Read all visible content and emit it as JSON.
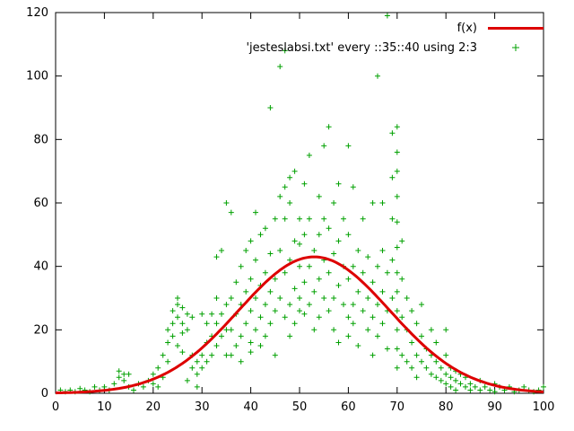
{
  "chart_data": {
    "type": "scatter",
    "title": "",
    "xlabel": "",
    "ylabel": "",
    "xlim": [
      0,
      100
    ],
    "ylim": [
      0,
      120
    ],
    "xticks": [
      0,
      10,
      20,
      30,
      40,
      50,
      60,
      70,
      80,
      90,
      100
    ],
    "yticks": [
      0,
      20,
      40,
      60,
      80,
      100,
      120
    ],
    "grid": false,
    "legend_position": "top-right-inside",
    "colors": {
      "line": "#dd0000",
      "points": "#00a000",
      "axis": "#000000",
      "background": "#ffffff"
    },
    "series": [
      {
        "label": "f(x)",
        "type": "line",
        "color": "#dd0000",
        "function": "gaussian",
        "amplitude": 43,
        "mean": 53,
        "sigma": 15.5
      },
      {
        "label": "'jesteslabsi.txt' every ::35::40 using 2:3",
        "type": "points",
        "marker": "plus",
        "color": "#00a000",
        "points": [
          [
            1,
            1
          ],
          [
            2,
            0.5
          ],
          [
            3,
            1
          ],
          [
            4,
            0.5
          ],
          [
            5,
            1.5
          ],
          [
            6,
            1
          ],
          [
            7,
            0.5
          ],
          [
            8,
            2
          ],
          [
            9,
            1
          ],
          [
            10,
            2
          ],
          [
            11,
            1
          ],
          [
            12,
            3
          ],
          [
            13,
            5
          ],
          [
            13,
            7
          ],
          [
            14,
            6
          ],
          [
            14,
            4
          ],
          [
            15,
            6
          ],
          [
            15,
            2
          ],
          [
            16,
            1
          ],
          [
            17,
            3
          ],
          [
            18,
            2
          ],
          [
            19,
            4
          ],
          [
            20,
            3
          ],
          [
            20,
            6
          ],
          [
            21,
            2
          ],
          [
            21,
            8
          ],
          [
            22,
            5
          ],
          [
            22,
            12
          ],
          [
            23,
            10
          ],
          [
            23,
            16
          ],
          [
            23,
            20
          ],
          [
            24,
            18
          ],
          [
            24,
            22
          ],
          [
            24,
            26
          ],
          [
            25,
            24
          ],
          [
            25,
            28
          ],
          [
            25,
            30
          ],
          [
            25,
            15
          ],
          [
            26,
            13
          ],
          [
            26,
            19
          ],
          [
            26,
            22
          ],
          [
            26,
            27
          ],
          [
            27,
            20
          ],
          [
            27,
            25
          ],
          [
            27,
            4
          ],
          [
            28,
            8
          ],
          [
            28,
            12
          ],
          [
            28,
            24
          ],
          [
            29,
            6
          ],
          [
            29,
            10
          ],
          [
            29,
            2
          ],
          [
            30,
            8
          ],
          [
            30,
            12
          ],
          [
            30,
            25
          ],
          [
            31,
            10
          ],
          [
            31,
            16
          ],
          [
            31,
            22
          ],
          [
            32,
            12
          ],
          [
            32,
            18
          ],
          [
            32,
            25
          ],
          [
            33,
            15
          ],
          [
            33,
            22
          ],
          [
            33,
            30
          ],
          [
            33,
            43
          ],
          [
            34,
            18
          ],
          [
            34,
            25
          ],
          [
            34,
            45
          ],
          [
            35,
            12
          ],
          [
            35,
            20
          ],
          [
            35,
            28
          ],
          [
            35,
            60
          ],
          [
            36,
            57
          ],
          [
            36,
            12
          ],
          [
            36,
            20
          ],
          [
            36,
            30
          ],
          [
            37,
            15
          ],
          [
            37,
            25
          ],
          [
            37,
            35
          ],
          [
            38,
            18
          ],
          [
            38,
            28
          ],
          [
            38,
            40
          ],
          [
            38,
            10
          ],
          [
            39,
            22
          ],
          [
            39,
            32
          ],
          [
            39,
            45
          ],
          [
            40,
            16
          ],
          [
            40,
            26
          ],
          [
            40,
            36
          ],
          [
            40,
            48
          ],
          [
            40,
            13
          ],
          [
            41,
            20
          ],
          [
            41,
            30
          ],
          [
            41,
            42
          ],
          [
            41,
            57
          ],
          [
            42,
            24
          ],
          [
            42,
            34
          ],
          [
            42,
            50
          ],
          [
            42,
            15
          ],
          [
            43,
            18
          ],
          [
            43,
            28
          ],
          [
            43,
            38
          ],
          [
            43,
            52
          ],
          [
            44,
            22
          ],
          [
            44,
            32
          ],
          [
            44,
            44
          ],
          [
            44,
            90
          ],
          [
            45,
            26
          ],
          [
            45,
            36
          ],
          [
            45,
            55
          ],
          [
            45,
            12
          ],
          [
            46,
            30
          ],
          [
            46,
            45
          ],
          [
            46,
            62
          ],
          [
            46,
            103
          ],
          [
            47,
            24
          ],
          [
            47,
            38
          ],
          [
            47,
            55
          ],
          [
            47,
            65
          ],
          [
            47,
            108
          ],
          [
            48,
            28
          ],
          [
            48,
            42
          ],
          [
            48,
            60
          ],
          [
            48,
            68
          ],
          [
            48,
            18
          ],
          [
            49,
            33
          ],
          [
            49,
            48
          ],
          [
            49,
            70
          ],
          [
            49,
            22
          ],
          [
            50,
            30
          ],
          [
            50,
            40
          ],
          [
            50,
            47
          ],
          [
            50,
            55
          ],
          [
            50,
            26
          ],
          [
            51,
            25
          ],
          [
            51,
            35
          ],
          [
            51,
            50
          ],
          [
            51,
            66
          ],
          [
            52,
            28
          ],
          [
            52,
            40
          ],
          [
            52,
            55
          ],
          [
            52,
            75
          ],
          [
            53,
            32
          ],
          [
            53,
            45
          ],
          [
            53,
            20
          ],
          [
            54,
            36
          ],
          [
            54,
            50
          ],
          [
            54,
            62
          ],
          [
            54,
            24
          ],
          [
            55,
            30
          ],
          [
            55,
            42
          ],
          [
            55,
            55
          ],
          [
            55,
            78
          ],
          [
            56,
            26
          ],
          [
            56,
            38
          ],
          [
            56,
            52
          ],
          [
            56,
            84
          ],
          [
            57,
            30
          ],
          [
            57,
            44
          ],
          [
            57,
            60
          ],
          [
            57,
            20
          ],
          [
            58,
            34
          ],
          [
            58,
            48
          ],
          [
            58,
            66
          ],
          [
            58,
            16
          ],
          [
            59,
            28
          ],
          [
            59,
            40
          ],
          [
            59,
            55
          ],
          [
            60,
            24
          ],
          [
            60,
            36
          ],
          [
            60,
            50
          ],
          [
            60,
            78
          ],
          [
            60,
            18
          ],
          [
            61,
            28
          ],
          [
            61,
            40
          ],
          [
            61,
            22
          ],
          [
            61,
            65
          ],
          [
            62,
            32
          ],
          [
            62,
            45
          ],
          [
            62,
            15
          ],
          [
            63,
            26
          ],
          [
            63,
            38
          ],
          [
            63,
            55
          ],
          [
            64,
            20
          ],
          [
            64,
            30
          ],
          [
            64,
            43
          ],
          [
            65,
            24
          ],
          [
            65,
            35
          ],
          [
            65,
            12
          ],
          [
            65,
            60
          ],
          [
            66,
            100
          ],
          [
            66,
            28
          ],
          [
            66,
            40
          ],
          [
            66,
            18
          ],
          [
            67,
            32
          ],
          [
            67,
            45
          ],
          [
            67,
            22
          ],
          [
            67,
            60
          ],
          [
            68,
            26
          ],
          [
            68,
            38
          ],
          [
            68,
            119
          ],
          [
            68,
            14
          ],
          [
            69,
            30
          ],
          [
            69,
            42
          ],
          [
            69,
            55
          ],
          [
            69,
            68
          ],
          [
            69,
            82
          ],
          [
            70,
            8
          ],
          [
            70,
            14
          ],
          [
            70,
            20
          ],
          [
            70,
            26
          ],
          [
            70,
            32
          ],
          [
            70,
            38
          ],
          [
            70,
            46
          ],
          [
            70,
            54
          ],
          [
            70,
            62
          ],
          [
            70,
            70
          ],
          [
            70,
            76
          ],
          [
            70,
            84
          ],
          [
            71,
            12
          ],
          [
            71,
            24
          ],
          [
            71,
            36
          ],
          [
            71,
            48
          ],
          [
            72,
            10
          ],
          [
            72,
            20
          ],
          [
            72,
            30
          ],
          [
            73,
            8
          ],
          [
            73,
            16
          ],
          [
            73,
            26
          ],
          [
            74,
            12
          ],
          [
            74,
            22
          ],
          [
            74,
            5
          ],
          [
            75,
            10
          ],
          [
            75,
            18
          ],
          [
            75,
            28
          ],
          [
            76,
            8
          ],
          [
            76,
            14
          ],
          [
            77,
            6
          ],
          [
            77,
            12
          ],
          [
            77,
            20
          ],
          [
            78,
            5
          ],
          [
            78,
            10
          ],
          [
            78,
            16
          ],
          [
            79,
            4
          ],
          [
            79,
            8
          ],
          [
            80,
            6
          ],
          [
            80,
            12
          ],
          [
            80,
            20
          ],
          [
            80,
            3
          ],
          [
            81,
            2
          ],
          [
            81,
            5
          ],
          [
            81,
            8
          ],
          [
            82,
            4
          ],
          [
            82,
            1
          ],
          [
            82,
            7
          ],
          [
            83,
            3
          ],
          [
            83,
            6
          ],
          [
            84,
            2
          ],
          [
            84,
            5
          ],
          [
            85,
            1
          ],
          [
            85,
            3
          ],
          [
            86,
            2
          ],
          [
            87,
            1
          ],
          [
            87,
            4
          ],
          [
            88,
            2
          ],
          [
            89,
            1
          ],
          [
            90,
            3
          ],
          [
            90,
            0.5
          ],
          [
            91,
            2
          ],
          [
            92,
            1
          ],
          [
            93,
            2
          ],
          [
            94,
            0.5
          ],
          [
            95,
            1
          ],
          [
            96,
            2
          ],
          [
            97,
            1
          ],
          [
            98,
            0.5
          ],
          [
            99,
            1
          ],
          [
            100,
            2
          ]
        ]
      }
    ]
  }
}
